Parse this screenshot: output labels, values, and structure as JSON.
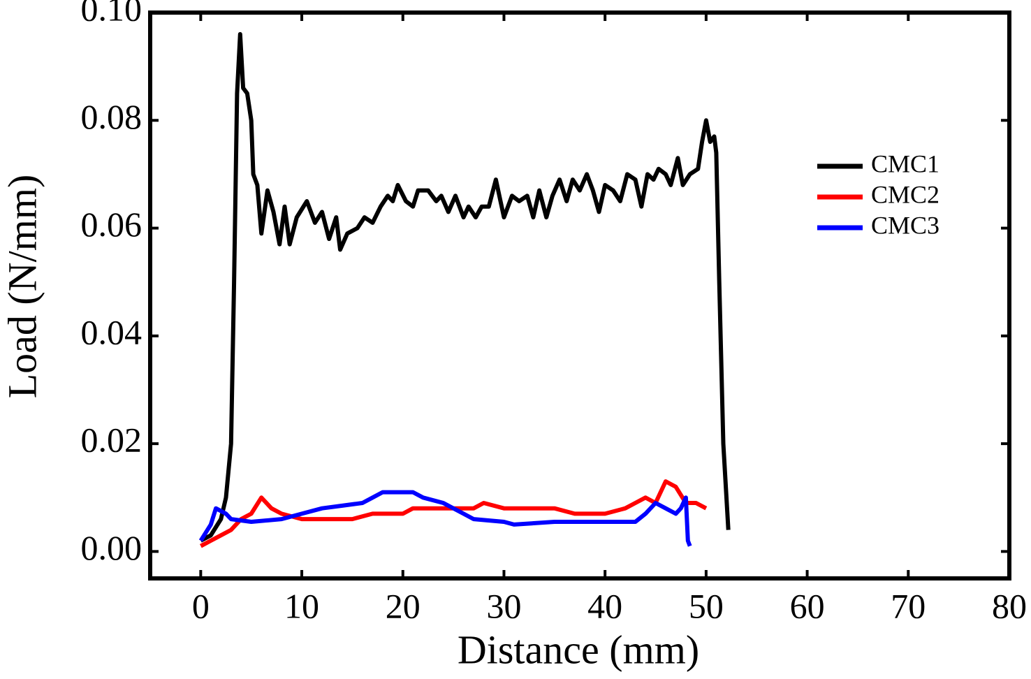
{
  "chart_data": {
    "type": "line",
    "xlabel": "Distance (mm)",
    "ylabel": "Load (N/mm)",
    "xlim": [
      -5,
      80
    ],
    "ylim": [
      -0.005,
      0.1
    ],
    "xticks": [
      0,
      10,
      20,
      30,
      40,
      50,
      60,
      70,
      80
    ],
    "yticks": [
      {
        "value": 0,
        "label": "0.00"
      },
      {
        "value": 0.02,
        "label": "0.02"
      },
      {
        "value": 0.04,
        "label": "0.04"
      },
      {
        "value": 0.06,
        "label": "0.06"
      },
      {
        "value": 0.08,
        "label": "0.08"
      },
      {
        "value": 0.1,
        "label": "0.10"
      }
    ],
    "legend": "right",
    "series": [
      {
        "name": "CMC1",
        "color": "#000000",
        "x": [
          0,
          1,
          2,
          2.5,
          3,
          3.3,
          3.6,
          3.9,
          4.2,
          4.6,
          5,
          5.2,
          5.6,
          6,
          6.6,
          7.2,
          7.8,
          8.3,
          8.8,
          9.5,
          10.5,
          11.3,
          12,
          12.7,
          13.4,
          13.8,
          14.5,
          15.5,
          16.2,
          17,
          17.8,
          18.5,
          19,
          19.5,
          20.3,
          21,
          21.5,
          22.5,
          23.3,
          23.8,
          24.5,
          25.2,
          26,
          26.5,
          27.2,
          27.8,
          28.5,
          29.2,
          30,
          30.8,
          31.5,
          32.3,
          32.9,
          33.5,
          34.2,
          34.8,
          35.5,
          36.2,
          36.8,
          37.5,
          38.2,
          38.8,
          39.4,
          40,
          40.8,
          41.5,
          42.2,
          43,
          43.6,
          44.2,
          44.8,
          45.3,
          46,
          46.5,
          47.2,
          47.7,
          48.4,
          49.2,
          49.6,
          50,
          50.4,
          50.8,
          51,
          51.3,
          51.7,
          52.2
        ],
        "values": [
          0.002,
          0.003,
          0.006,
          0.01,
          0.02,
          0.05,
          0.085,
          0.096,
          0.086,
          0.085,
          0.08,
          0.07,
          0.068,
          0.059,
          0.067,
          0.063,
          0.057,
          0.064,
          0.057,
          0.062,
          0.065,
          0.061,
          0.063,
          0.058,
          0.062,
          0.056,
          0.059,
          0.06,
          0.062,
          0.061,
          0.064,
          0.066,
          0.065,
          0.068,
          0.065,
          0.064,
          0.067,
          0.067,
          0.065,
          0.066,
          0.063,
          0.066,
          0.062,
          0.064,
          0.062,
          0.064,
          0.064,
          0.069,
          0.062,
          0.066,
          0.065,
          0.066,
          0.062,
          0.067,
          0.062,
          0.066,
          0.069,
          0.065,
          0.069,
          0.067,
          0.07,
          0.067,
          0.063,
          0.068,
          0.067,
          0.065,
          0.07,
          0.069,
          0.064,
          0.07,
          0.069,
          0.071,
          0.07,
          0.068,
          0.073,
          0.068,
          0.07,
          0.071,
          0.076,
          0.08,
          0.076,
          0.077,
          0.074,
          0.05,
          0.02,
          0.004
        ]
      },
      {
        "name": "CMC2",
        "color": "#ff0000",
        "x": [
          0,
          1,
          2,
          3,
          4,
          5,
          6,
          7,
          8,
          10,
          15,
          17,
          20,
          21,
          25,
          27,
          28,
          30,
          35,
          37,
          40,
          42,
          43,
          44,
          45,
          46,
          47,
          48,
          49,
          50
        ],
        "values": [
          0.001,
          0.002,
          0.003,
          0.004,
          0.006,
          0.007,
          0.01,
          0.008,
          0.007,
          0.006,
          0.006,
          0.007,
          0.007,
          0.008,
          0.008,
          0.008,
          0.009,
          0.008,
          0.008,
          0.007,
          0.007,
          0.008,
          0.009,
          0.01,
          0.009,
          0.013,
          0.012,
          0.009,
          0.009,
          0.008
        ]
      },
      {
        "name": "CMC3",
        "color": "#0000ff",
        "x": [
          0,
          1,
          1.5,
          2.5,
          3,
          5,
          8,
          10,
          12,
          14,
          16,
          17,
          18,
          21,
          22,
          24,
          26,
          27,
          30,
          31,
          35,
          40,
          43,
          44,
          45,
          46,
          47,
          47.5,
          48,
          48.2,
          48.4
        ],
        "values": [
          0.002,
          0.005,
          0.008,
          0.007,
          0.006,
          0.0055,
          0.006,
          0.007,
          0.008,
          0.0085,
          0.009,
          0.01,
          0.011,
          0.011,
          0.01,
          0.009,
          0.007,
          0.006,
          0.0055,
          0.005,
          0.0055,
          0.0055,
          0.0055,
          0.007,
          0.009,
          0.008,
          0.007,
          0.008,
          0.01,
          0.002,
          0.001
        ]
      }
    ]
  }
}
